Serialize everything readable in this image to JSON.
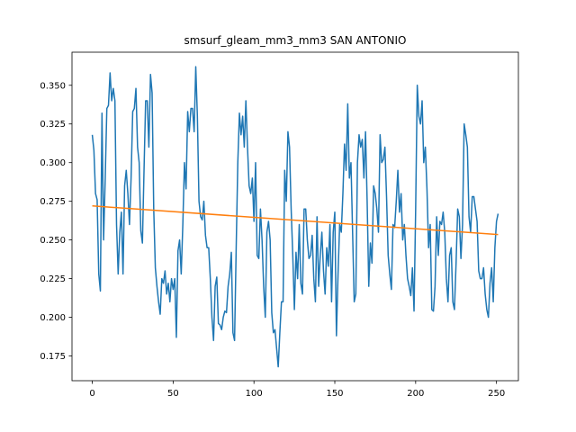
{
  "chart_data": {
    "type": "line",
    "title": "smsurf_gleam_mm3_mm3 SAN ANTONIO",
    "xlim": [
      -12.55,
      263.55
    ],
    "xticks": [
      0,
      50,
      100,
      150,
      200,
      250
    ],
    "ylim": [
      0.159,
      0.3714
    ],
    "yticks": [
      0.175,
      {
        "value": 0.2,
        "label": "0.200"
      },
      0.225,
      {
        "value": 0.25,
        "label": "0.250"
      },
      0.275,
      {
        "value": 0.3,
        "label": "0.300"
      },
      0.325,
      {
        "value": 0.35,
        "label": "0.350"
      }
    ],
    "series": [
      {
        "color": "#1f77b4",
        "values": [
          0.318,
          0.308,
          0.28,
          0.276,
          0.228,
          0.217,
          0.332,
          0.25,
          0.29,
          0.335,
          0.337,
          0.358,
          0.34,
          0.348,
          0.34,
          0.26,
          0.228,
          0.255,
          0.268,
          0.228,
          0.285,
          0.295,
          0.28,
          0.26,
          0.29,
          0.333,
          0.335,
          0.348,
          0.31,
          0.3,
          0.256,
          0.248,
          0.295,
          0.34,
          0.34,
          0.31,
          0.357,
          0.345,
          0.27,
          0.232,
          0.22,
          0.21,
          0.202,
          0.225,
          0.222,
          0.23,
          0.215,
          0.222,
          0.21,
          0.225,
          0.218,
          0.225,
          0.187,
          0.243,
          0.25,
          0.228,
          0.26,
          0.3,
          0.283,
          0.333,
          0.32,
          0.335,
          0.335,
          0.32,
          0.362,
          0.33,
          0.275,
          0.265,
          0.263,
          0.275,
          0.253,
          0.245,
          0.245,
          0.225,
          0.2,
          0.185,
          0.22,
          0.226,
          0.196,
          0.195,
          0.192,
          0.2,
          0.204,
          0.203,
          0.22,
          0.228,
          0.242,
          0.19,
          0.185,
          0.245,
          0.3,
          0.332,
          0.318,
          0.33,
          0.31,
          0.34,
          0.31,
          0.285,
          0.28,
          0.29,
          0.262,
          0.3,
          0.24,
          0.238,
          0.27,
          0.25,
          0.22,
          0.2,
          0.255,
          0.262,
          0.25,
          0.203,
          0.19,
          0.192,
          0.18,
          0.168,
          0.19,
          0.21,
          0.21,
          0.295,
          0.275,
          0.32,
          0.31,
          0.27,
          0.24,
          0.205,
          0.242,
          0.225,
          0.26,
          0.222,
          0.215,
          0.27,
          0.27,
          0.25,
          0.238,
          0.24,
          0.253,
          0.225,
          0.21,
          0.265,
          0.22,
          0.24,
          0.255,
          0.23,
          0.215,
          0.245,
          0.233,
          0.26,
          0.21,
          0.255,
          0.268,
          0.188,
          0.228,
          0.26,
          0.255,
          0.28,
          0.312,
          0.295,
          0.338,
          0.29,
          0.3,
          0.255,
          0.21,
          0.215,
          0.3,
          0.318,
          0.31,
          0.315,
          0.29,
          0.32,
          0.275,
          0.22,
          0.248,
          0.235,
          0.285,
          0.28,
          0.27,
          0.255,
          0.318,
          0.3,
          0.302,
          0.31,
          0.278,
          0.24,
          0.228,
          0.218,
          0.26,
          0.258,
          0.275,
          0.295,
          0.268,
          0.28,
          0.25,
          0.26,
          0.24,
          0.225,
          0.22,
          0.214,
          0.232,
          0.204,
          0.27,
          0.35,
          0.33,
          0.325,
          0.34,
          0.3,
          0.31,
          0.283,
          0.245,
          0.26,
          0.205,
          0.204,
          0.22,
          0.265,
          0.24,
          0.262,
          0.26,
          0.268,
          0.255,
          0.225,
          0.21,
          0.24,
          0.245,
          0.21,
          0.205,
          0.235,
          0.27,
          0.265,
          0.238,
          0.26,
          0.325,
          0.318,
          0.31,
          0.265,
          0.255,
          0.278,
          0.278,
          0.27,
          0.262,
          0.23,
          0.225,
          0.225,
          0.232,
          0.215,
          0.205,
          0.2,
          0.222,
          0.232,
          0.21,
          0.245,
          0.262,
          0.267
        ]
      },
      {
        "color": "#ff7f0e",
        "x": [
          0,
          251
        ],
        "values": [
          0.272,
          0.2535
        ]
      }
    ]
  }
}
